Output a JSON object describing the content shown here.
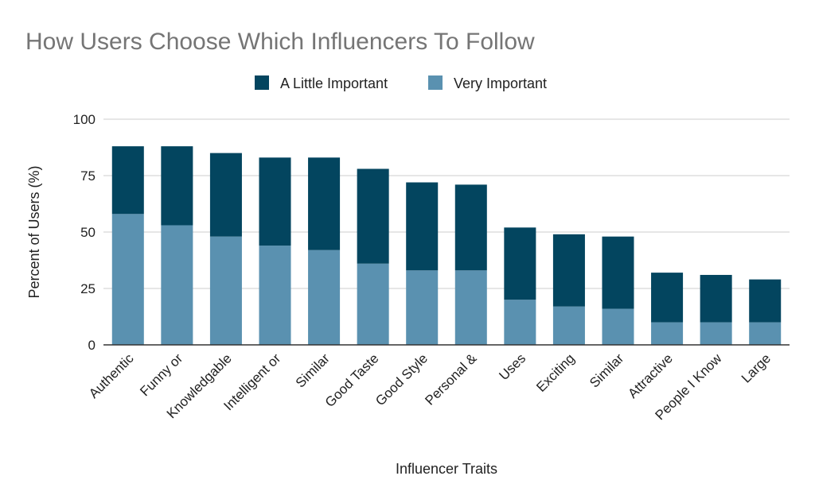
{
  "chart_data": {
    "type": "bar",
    "stacked": true,
    "title": "How Users Choose Which Influencers To Follow",
    "xlabel": "Influencer Traits",
    "ylabel": "Percent of Users (%)",
    "ylim": [
      0,
      100
    ],
    "yticks": [
      0,
      25,
      50,
      75,
      100
    ],
    "grid": true,
    "legend_position": "top",
    "categories": [
      "Authentic",
      "Funny or",
      "Knowledgable",
      "Intelligent or",
      "Similar",
      "Good Taste",
      "Good Style",
      "Personal &",
      "Uses",
      "Exciting",
      "Similar",
      "Attractive",
      "People I Know",
      "Large"
    ],
    "series": [
      {
        "name": "Very Important",
        "color": "#5a91b0",
        "values": [
          58,
          53,
          48,
          44,
          42,
          36,
          33,
          33,
          20,
          17,
          16,
          10,
          10,
          10
        ]
      },
      {
        "name": "A Little Important",
        "color": "#03455f",
        "values": [
          30,
          35,
          37,
          39,
          41,
          42,
          39,
          38,
          32,
          32,
          32,
          22,
          21,
          19
        ]
      }
    ],
    "legend_order": [
      "A Little Important",
      "Very Important"
    ]
  }
}
